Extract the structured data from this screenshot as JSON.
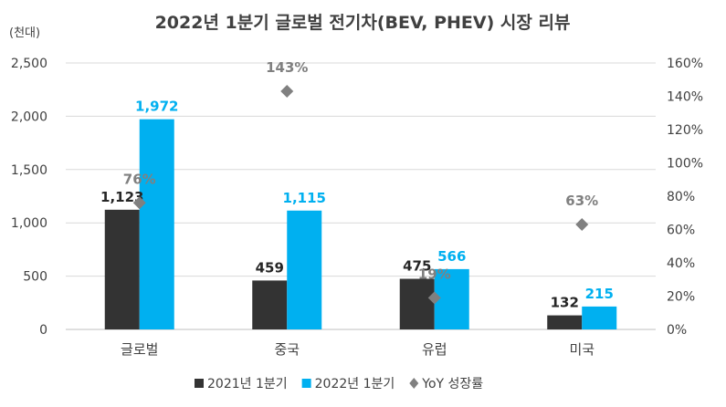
{
  "chart_data": {
    "type": "bar",
    "title": "2022년 1분기 글로벌 전기차(BEV, PHEV) 시장 리뷰",
    "ylabel": "(천대)",
    "categories": [
      "글로벌",
      "중국",
      "유럽",
      "미국"
    ],
    "ylim": [
      0,
      2500
    ],
    "yticks": [
      "0",
      "500",
      "1,000",
      "1,500",
      "2,000",
      "2,500"
    ],
    "y2lim": [
      0,
      160
    ],
    "y2ticks": [
      "0%",
      "20%",
      "40%",
      "60%",
      "80%",
      "100%",
      "120%",
      "140%",
      "160%"
    ],
    "series": [
      {
        "name": "2021년 1분기",
        "values": [
          1123,
          459,
          475,
          132
        ],
        "labels": [
          "1,123",
          "459",
          "475",
          "132"
        ],
        "color": "#333333"
      },
      {
        "name": "2022년 1분기",
        "values": [
          1972,
          1115,
          566,
          215
        ],
        "labels": [
          "1,972",
          "1,115",
          "566",
          "215"
        ],
        "color": "#00b0f0"
      }
    ],
    "line_series": {
      "name": "YoY 성장률",
      "values": [
        76,
        143,
        19,
        63
      ],
      "labels": [
        "76%",
        "143%",
        "19%",
        "63%"
      ],
      "color": "#808080",
      "marker": "diamond"
    },
    "grid": true,
    "legend": "bottom"
  }
}
